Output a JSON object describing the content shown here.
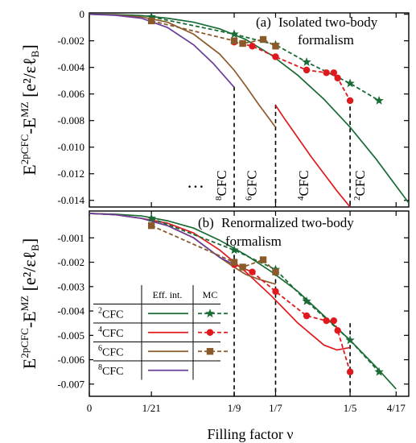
{
  "chart_data": {
    "type": "line",
    "xlabel": "Filling factor ν",
    "x_ticks": [
      {
        "value": 0,
        "label": "0"
      },
      {
        "value": 0.047619,
        "label": "1/21"
      },
      {
        "value": 0.111111,
        "label": "1/9"
      },
      {
        "value": 0.142857,
        "label": "1/7"
      },
      {
        "value": 0.2,
        "label": "1/5"
      },
      {
        "value": 0.235294,
        "label": "4/17"
      }
    ],
    "xlim": [
      0,
      0.245
    ],
    "ylabel": {
      "main": "E",
      "sup1": "2pCFC",
      "mid": "-E",
      "sup2": "MZ",
      "bracket": "[e²/εℓ",
      "sub": "B",
      "close": "]"
    },
    "panels": [
      {
        "title": "(a)",
        "title_lines": [
          "Isolated two-body",
          "formalism"
        ],
        "ylim": [
          -0.0145,
          0.0001
        ],
        "y_ticks": [
          "0",
          "-0.002",
          "-0.004",
          "-0.006",
          "-0.008",
          "-0.010",
          "-0.012",
          "-0.014"
        ],
        "y_tick_values": [
          0,
          -0.002,
          -0.004,
          -0.006,
          -0.008,
          -0.01,
          -0.012,
          -0.014
        ],
        "vlines": [
          {
            "x": 0.111111,
            "y_top": -0.00545,
            "label": "8CFC",
            "sup": "8",
            "base": "CFC"
          },
          {
            "x": 0.142857,
            "y_top": -0.0068,
            "label": "6CFC",
            "sup": "6",
            "base": "CFC"
          },
          {
            "x": 0.2,
            "y_top": -0.0064,
            "label": "4CFC",
            "sup": "4",
            "base": "CFC"
          },
          {
            "x": 0.2,
            "label": "2CFC",
            "sup": "2",
            "base": "CFC"
          }
        ],
        "ellipsis": "…",
        "series": [
          {
            "key": "2CFC_eff",
            "color": "#1a6b35",
            "dash": false,
            "x": [
              0,
              0.02,
              0.04,
              0.06,
              0.08,
              0.1,
              0.12,
              0.14,
              0.16,
              0.18,
              0.2,
              0.22,
              0.245
            ],
            "y": [
              0,
              -3e-05,
              -0.0001,
              -0.0003,
              -0.0006,
              -0.0011,
              -0.0019,
              -0.0031,
              -0.0046,
              -0.0064,
              -0.0085,
              -0.0109,
              -0.0142
            ]
          },
          {
            "key": "4CFC_eff",
            "color": "#e0191e",
            "dash": false,
            "x": [
              0.142857,
              0.15,
              0.16,
              0.17,
              0.18,
              0.19,
              0.2
            ],
            "y": [
              -0.00685,
              -0.0079,
              -0.0093,
              -0.0107,
              -0.012,
              -0.0133,
              -0.0145
            ]
          },
          {
            "key": "6CFC_eff",
            "color": "#8b5a2b",
            "dash": false,
            "x": [
              0,
              0.02,
              0.04,
              0.06,
              0.08,
              0.1,
              0.111,
              0.12,
              0.13,
              0.142857
            ],
            "y": [
              0,
              -5e-05,
              -0.0002,
              -0.0006,
              -0.0015,
              -0.003,
              -0.0042,
              -0.0054,
              -0.0068,
              -0.0085
            ]
          },
          {
            "key": "8CFC_eff",
            "color": "#6a3d9a",
            "dash": false,
            "x": [
              0,
              0.02,
              0.04,
              0.06,
              0.08,
              0.095,
              0.111111
            ],
            "y": [
              0,
              -8e-05,
              -0.0003,
              -0.001,
              -0.0023,
              -0.0037,
              -0.0055
            ]
          },
          {
            "key": "2CFC_MC",
            "color": "#1a6b35",
            "dash": true,
            "marker": "star",
            "x": [
              0.047619,
              0.111111,
              0.142857,
              0.166667,
              0.2,
              0.222222
            ],
            "y": [
              -0.0002,
              -0.0015,
              -0.0023,
              -0.0036,
              -0.0052,
              -0.0065
            ]
          },
          {
            "key": "4CFC_MC",
            "color": "#e0191e",
            "dash": true,
            "marker": "circle",
            "x": [
              0.111111,
              0.125,
              0.142857,
              0.166667,
              0.181818,
              0.1875,
              0.190476,
              0.2
            ],
            "y": [
              -0.0021,
              -0.0024,
              -0.0032,
              -0.0042,
              -0.0044,
              -0.0044,
              -0.0048,
              -0.0065
            ]
          },
          {
            "key": "6CFC_MC",
            "color": "#8b5a2b",
            "dash": true,
            "marker": "square",
            "x": [
              0.047619,
              0.111111,
              0.117647,
              0.133333,
              0.142857
            ],
            "y": [
              -0.0005,
              -0.002,
              -0.0022,
              -0.0019,
              -0.0024
            ]
          }
        ]
      },
      {
        "title": "(b)",
        "title_lines": [
          "Renormalized two-body",
          "formalism"
        ],
        "ylim": [
          -0.0075,
          0.0001
        ],
        "y_ticks": [
          "-0.001",
          "-0.002",
          "-0.003",
          "-0.004",
          "-0.005",
          "-0.006",
          "-0.007"
        ],
        "y_tick_values": [
          -0.001,
          -0.002,
          -0.003,
          -0.004,
          -0.005,
          -0.006,
          -0.007
        ],
        "vlines": [
          {
            "x": 0.111111,
            "y_top": -0.0014
          },
          {
            "x": 0.142857,
            "y_top": -0.0024
          },
          {
            "x": 0.2,
            "y_top": -0.0045
          }
        ],
        "series": [
          {
            "key": "2CFC_eff",
            "color": "#1a6b35",
            "dash": false,
            "x": [
              0,
              0.02,
              0.04,
              0.06,
              0.08,
              0.1,
              0.12,
              0.14,
              0.16,
              0.18,
              0.2,
              0.22,
              0.235294
            ],
            "y": [
              0,
              -3e-05,
              -0.0001,
              -0.0003,
              -0.0006,
              -0.0011,
              -0.0017,
              -0.0024,
              -0.0032,
              -0.0042,
              -0.0052,
              -0.0063,
              -0.0072
            ]
          },
          {
            "key": "4CFC_eff",
            "color": "#e0191e",
            "dash": false,
            "x": [
              0,
              0.02,
              0.04,
              0.06,
              0.08,
              0.1,
              0.12,
              0.14,
              0.16,
              0.18,
              0.19,
              0.2
            ],
            "y": [
              0,
              -5e-05,
              -0.0002,
              -0.0004,
              -0.0008,
              -0.0015,
              -0.0024,
              -0.0034,
              -0.0045,
              -0.0054,
              -0.0056,
              -0.0055
            ]
          },
          {
            "key": "6CFC_eff",
            "color": "#8b5a2b",
            "dash": false,
            "x": [
              0,
              0.02,
              0.04,
              0.06,
              0.08,
              0.1,
              0.111,
              0.12,
              0.13,
              0.142857
            ],
            "y": [
              0,
              -5e-05,
              -0.0002,
              -0.0005,
              -0.001,
              -0.0018,
              -0.0022,
              -0.0025,
              -0.0027,
              -0.0029
            ]
          },
          {
            "key": "8CFC_eff",
            "color": "#6a3d9a",
            "dash": false,
            "x": [
              0,
              0.02,
              0.04,
              0.06,
              0.08,
              0.1,
              0.111111
            ],
            "y": [
              0,
              -5e-05,
              -0.0002,
              -0.0005,
              -0.001,
              -0.0018,
              -0.0021
            ]
          },
          {
            "key": "2CFC_MC",
            "color": "#1a6b35",
            "dash": true,
            "marker": "star",
            "x": [
              0.047619,
              0.111111,
              0.142857,
              0.166667,
              0.2,
              0.222222
            ],
            "y": [
              -0.0002,
              -0.0015,
              -0.0023,
              -0.0036,
              -0.0052,
              -0.0065
            ]
          },
          {
            "key": "4CFC_MC",
            "color": "#e0191e",
            "dash": true,
            "marker": "circle",
            "x": [
              0.111111,
              0.125,
              0.142857,
              0.166667,
              0.181818,
              0.1875,
              0.190476,
              0.2
            ],
            "y": [
              -0.0021,
              -0.0024,
              -0.0032,
              -0.0042,
              -0.0044,
              -0.0044,
              -0.0048,
              -0.0065
            ]
          },
          {
            "key": "6CFC_MC",
            "color": "#8b5a2b",
            "dash": true,
            "marker": "square",
            "x": [
              0.047619,
              0.111111,
              0.117647,
              0.133333,
              0.142857
            ],
            "y": [
              -0.0005,
              -0.002,
              -0.0022,
              -0.0019,
              -0.0024
            ]
          }
        ]
      }
    ],
    "legend": {
      "placement": "bottom-left",
      "headers": [
        "Eff. int.",
        "MC"
      ],
      "rows": [
        {
          "sup": "2",
          "base": "CFC",
          "line_color": "#1a6b35",
          "mc_marker": "star"
        },
        {
          "sup": "4",
          "base": "CFC",
          "line_color": "#e0191e",
          "mc_marker": "circle"
        },
        {
          "sup": "6",
          "base": "CFC",
          "line_color": "#8b5a2b",
          "mc_marker": "square"
        },
        {
          "sup": "8",
          "base": "CFC",
          "line_color": "#6a3d9a",
          "mc_marker": null
        }
      ]
    },
    "colors": {
      "2CFC": "#1a6b35",
      "4CFC": "#e0191e",
      "6CFC": "#8b5a2b",
      "8CFC": "#6a3d9a"
    }
  }
}
